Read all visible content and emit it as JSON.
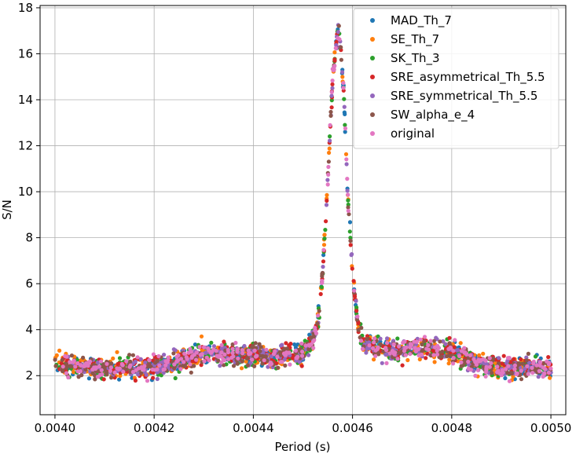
{
  "chart_data": {
    "type": "scatter",
    "title": "",
    "xlabel": "Period (s)",
    "ylabel": "S/N",
    "xlim": [
      0.00397,
      0.00503
    ],
    "ylim": [
      0.3,
      18.1
    ],
    "grid": true,
    "legend_placement": "top-right",
    "xticks": [
      0.004,
      0.0042,
      0.0044,
      0.0046,
      0.0048,
      0.005
    ],
    "xtick_labels": [
      "0.0040",
      "0.0042",
      "0.0044",
      "0.0046",
      "0.0048",
      "0.0050"
    ],
    "yticks": [
      2,
      4,
      6,
      8,
      10,
      12,
      14,
      16,
      18
    ],
    "ytick_labels": [
      "2",
      "4",
      "6",
      "8",
      "10",
      "12",
      "14",
      "16",
      "18"
    ],
    "baseline_profile": [
      [
        0.004,
        2.5
      ],
      [
        0.0041,
        2.3
      ],
      [
        0.0042,
        2.4
      ],
      [
        0.00425,
        2.6
      ],
      [
        0.0043,
        3.0
      ],
      [
        0.00435,
        2.9
      ],
      [
        0.0044,
        2.9
      ],
      [
        0.00445,
        2.8
      ],
      [
        0.0045,
        3.0
      ],
      [
        0.00452,
        3.6
      ],
      [
        0.00453,
        4.2
      ],
      [
        0.00454,
        6.5
      ],
      [
        0.00455,
        10.5
      ],
      [
        0.00456,
        15.0
      ],
      [
        0.004572,
        17.2
      ],
      [
        0.004582,
        14.5
      ],
      [
        0.00459,
        10.0
      ],
      [
        0.0046,
        6.5
      ],
      [
        0.00461,
        4.3
      ],
      [
        0.00462,
        3.4
      ],
      [
        0.0047,
        3.0
      ],
      [
        0.00472,
        3.3
      ],
      [
        0.0048,
        3.0
      ],
      [
        0.00485,
        2.6
      ],
      [
        0.0049,
        2.3
      ],
      [
        0.005,
        2.4
      ]
    ],
    "series": [
      {
        "name": "MAD_Th_7",
        "color": "#1f77b4",
        "points_per_series": 320,
        "scatter": 0.8,
        "seed": 11
      },
      {
        "name": "SE_Th_7",
        "color": "#ff7f0e",
        "points_per_series": 320,
        "scatter": 0.9,
        "seed": 23
      },
      {
        "name": "SK_Th_3",
        "color": "#2ca02c",
        "points_per_series": 320,
        "scatter": 0.8,
        "seed": 37
      },
      {
        "name": "SRE_asymmetrical_Th_5.5",
        "color": "#d62728",
        "points_per_series": 320,
        "scatter": 0.8,
        "seed": 41
      },
      {
        "name": "SRE_symmetrical_Th_5.5",
        "color": "#9467bd",
        "points_per_series": 320,
        "scatter": 0.8,
        "seed": 53
      },
      {
        "name": "SW_alpha_e_4",
        "color": "#8c564b",
        "points_per_series": 320,
        "scatter": 0.8,
        "seed": 67
      },
      {
        "name": "original",
        "color": "#e377c2",
        "points_per_series": 320,
        "scatter": 0.85,
        "seed": 79
      }
    ]
  }
}
